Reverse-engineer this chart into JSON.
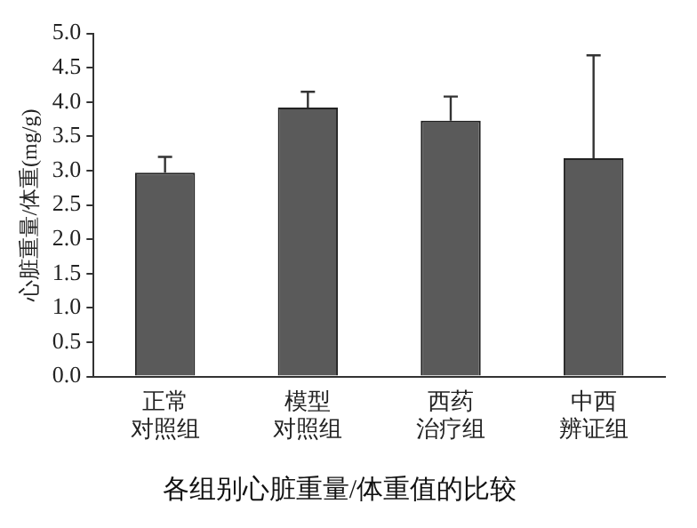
{
  "chart_data": {
    "type": "bar",
    "title": "各组别心脏重量/体重值的比较",
    "ylabel": "心脏重量/体重(mg/g)",
    "categories": [
      "正常对照组",
      "模型对照组",
      "西药治疗组",
      "中西辨证组"
    ],
    "values": [
      2.97,
      3.92,
      3.73,
      3.18
    ],
    "color": "#5a5a5a",
    "errors": [
      [
        2.97,
        3.2
      ],
      [
        3.92,
        4.15
      ],
      [
        3.73,
        4.08
      ],
      [
        3.18,
        4.68
      ]
    ],
    "ylim": [
      0,
      5
    ],
    "yticks": [
      {
        "value": 0,
        "label": "0.0"
      },
      {
        "value": 0.5,
        "label": "0.5"
      },
      {
        "value": 1,
        "label": "1.0"
      },
      {
        "value": 1.5,
        "label": "1.5"
      },
      {
        "value": 2,
        "label": "2.0"
      },
      {
        "value": 2.5,
        "label": "2.5"
      },
      {
        "value": 3,
        "label": "3.0"
      },
      {
        "value": 3.5,
        "label": "3.5"
      },
      {
        "value": 4,
        "label": "4.0"
      },
      {
        "value": 4.5,
        "label": "4.5"
      },
      {
        "value": 5,
        "label": "5.0"
      }
    ],
    "grid": false,
    "legend": false
  }
}
